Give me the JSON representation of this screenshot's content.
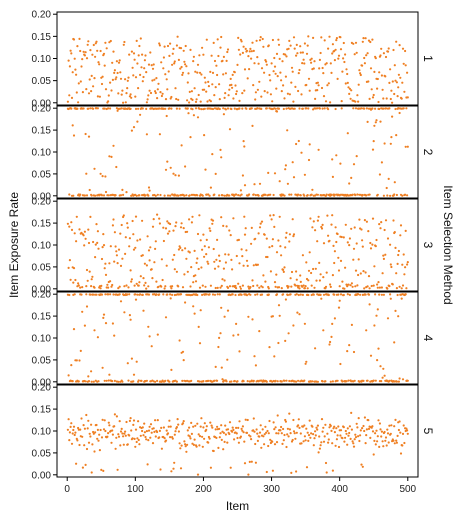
{
  "chart_data": {
    "type": "scatter",
    "xlabel": "Item",
    "ylabel": "Item Exposure Rate",
    "strip_title": "Item Selection Method",
    "xlim": [
      -15,
      515
    ],
    "xticks": [
      0,
      100,
      200,
      300,
      400,
      500
    ],
    "ylim": [
      -0.005,
      0.205
    ],
    "yticks": [
      "0.00",
      "0.05",
      "0.10",
      "0.15",
      "0.20"
    ],
    "grid": false,
    "point_color": "#ef7f22",
    "n_items": 500,
    "panels": [
      {
        "name": "1",
        "pattern": "uniform-0-0.15"
      },
      {
        "name": "2",
        "pattern": "mostly 0.00 and 0.20, sparse between"
      },
      {
        "name": "3",
        "pattern": "spread 0-0.17, cluster near 0"
      },
      {
        "name": "4",
        "pattern": "mostly 0.00 and 0.20, sparse between"
      },
      {
        "name": "5",
        "pattern": "centered ~0.10, range 0-0.16"
      }
    ]
  }
}
